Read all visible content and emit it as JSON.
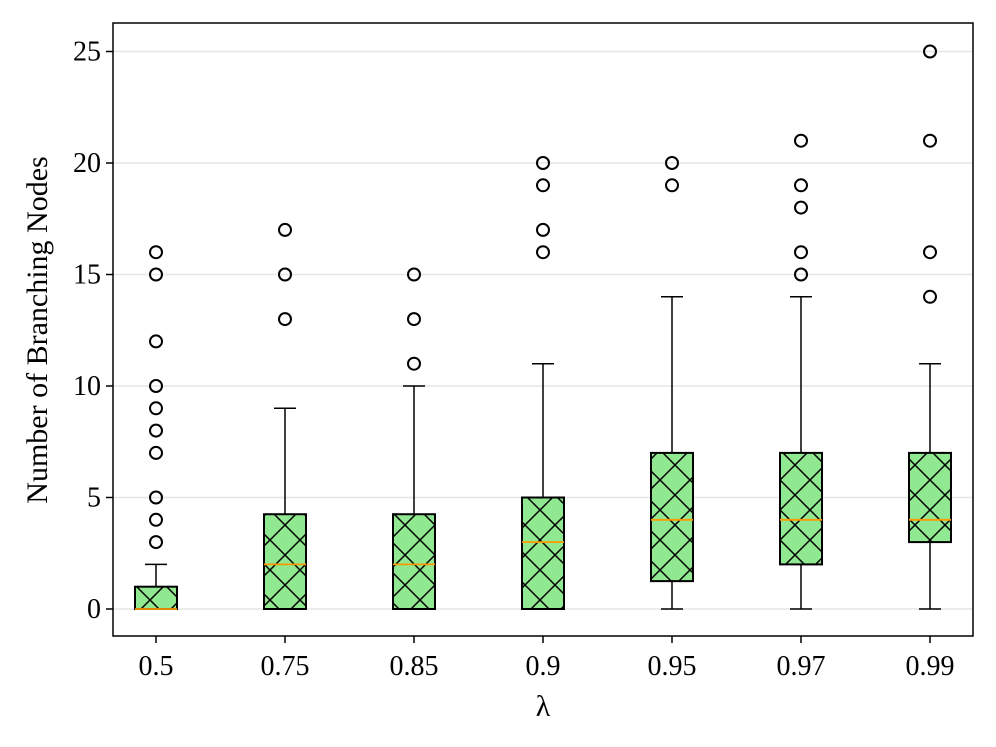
{
  "chart_data": {
    "type": "boxplot",
    "title": "",
    "xlabel": "λ",
    "ylabel": "Number of Branching Nodes",
    "ylim": [
      -1.25,
      26.3
    ],
    "yticks": [
      0,
      5,
      10,
      15,
      20,
      25
    ],
    "ytick_labels": [
      "0",
      "5",
      "10",
      "15",
      "20",
      "25"
    ],
    "grid": "horizontal",
    "categories": [
      "0.5",
      "0.75",
      "0.85",
      "0.9",
      "0.95",
      "0.97",
      "0.99"
    ],
    "boxes": [
      {
        "label": "0.5",
        "whisker_low": 0,
        "q1": 0,
        "median": 0,
        "q3": 1,
        "whisker_high": 2,
        "outliers": [
          3,
          4,
          5,
          7,
          8,
          9,
          10,
          12,
          15,
          16
        ]
      },
      {
        "label": "0.75",
        "whisker_low": 0,
        "q1": 0,
        "median": 2,
        "q3": 4.25,
        "whisker_high": 9,
        "outliers": [
          13,
          15,
          17
        ]
      },
      {
        "label": "0.85",
        "whisker_low": 0,
        "q1": 0,
        "median": 2,
        "q3": 4.25,
        "whisker_high": 10,
        "outliers": [
          11,
          13,
          15
        ]
      },
      {
        "label": "0.9",
        "whisker_low": 0,
        "q1": 0,
        "median": 3,
        "q3": 5,
        "whisker_high": 11,
        "outliers": [
          16,
          17,
          19,
          20
        ]
      },
      {
        "label": "0.95",
        "whisker_low": 0,
        "q1": 1.25,
        "median": 4,
        "q3": 7,
        "whisker_high": 14,
        "outliers": [
          19,
          20
        ]
      },
      {
        "label": "0.97",
        "whisker_low": 0,
        "q1": 2,
        "median": 4,
        "q3": 7,
        "whisker_high": 14,
        "outliers": [
          15,
          16,
          18,
          19,
          21
        ]
      },
      {
        "label": "0.99",
        "whisker_low": 0,
        "q1": 3,
        "median": 4,
        "q3": 7,
        "whisker_high": 11,
        "outliers": [
          14,
          16,
          21,
          25
        ]
      }
    ],
    "colors": {
      "box_fill": "#90e890",
      "hatch": "#000000",
      "median": "#ff9900",
      "grid": "#e6e6e6",
      "axis": "#000000"
    }
  }
}
